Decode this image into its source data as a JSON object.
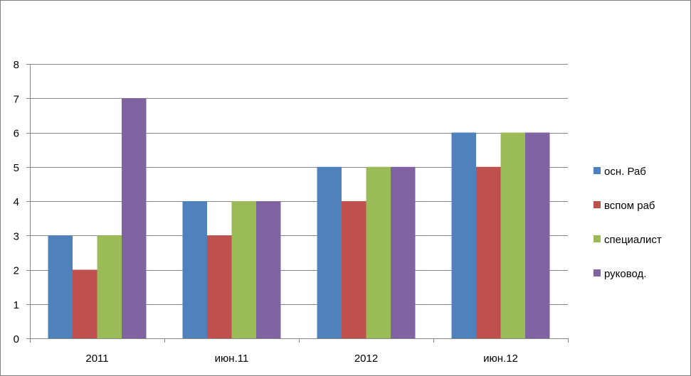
{
  "chart_data": {
    "type": "bar",
    "categories": [
      "2011",
      "июн.11",
      "2012",
      "июн.12"
    ],
    "series": [
      {
        "name": "осн. Раб",
        "color": "#4F81BD",
        "values": [
          3,
          4,
          5,
          6
        ]
      },
      {
        "name": "вспом раб",
        "color": "#C0504D",
        "values": [
          2,
          3,
          4,
          5
        ]
      },
      {
        "name": "специалист",
        "color": "#9BBB59",
        "values": [
          3,
          4,
          5,
          6
        ]
      },
      {
        "name": "руковод.",
        "color": "#8064A2",
        "values": [
          7,
          4,
          5,
          6
        ]
      }
    ],
    "ylim": [
      0,
      8
    ],
    "yticks": [
      "0",
      "1",
      "2",
      "3",
      "4",
      "5",
      "6",
      "7",
      "8"
    ],
    "grid": true,
    "legend_position": "right"
  }
}
